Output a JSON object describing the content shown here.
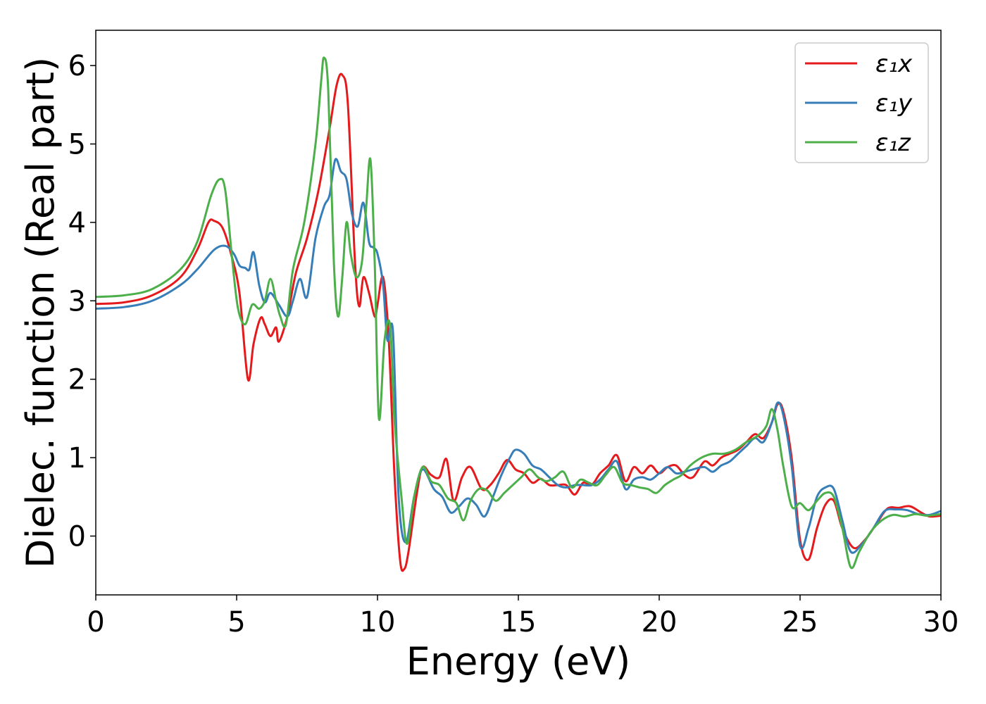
{
  "chart_data": {
    "type": "line",
    "title": "",
    "xlabel": "Energy (eV)",
    "ylabel": "Dielec. function (Real part)",
    "xlim": [
      0,
      30
    ],
    "ylim": [
      -0.75,
      6.45
    ],
    "xticks": [
      0,
      5,
      10,
      15,
      20,
      25,
      30
    ],
    "yticks": [
      0,
      1,
      2,
      3,
      4,
      5,
      6
    ],
    "grid": false,
    "legend": "top-right",
    "series": [
      {
        "name": "ε₁x",
        "color": "#e41a1c",
        "x": [
          0,
          1,
          2,
          3,
          3.6,
          4.0,
          4.2,
          4.5,
          4.8,
          5.1,
          5.4,
          5.6,
          5.85,
          6.0,
          6.2,
          6.4,
          6.5,
          6.8,
          7.1,
          7.5,
          7.9,
          8.3,
          8.55,
          8.75,
          8.95,
          9.2,
          9.35,
          9.5,
          9.7,
          9.9,
          10.0,
          10.2,
          10.4,
          10.6,
          10.8,
          10.95,
          11.1,
          11.4,
          11.6,
          11.9,
          12.2,
          12.45,
          12.7,
          13.0,
          13.3,
          13.7,
          14.0,
          14.3,
          14.6,
          14.9,
          15.2,
          15.5,
          15.8,
          16.1,
          16.4,
          16.7,
          17.0,
          17.3,
          17.6,
          17.9,
          18.2,
          18.5,
          18.8,
          19.1,
          19.4,
          19.7,
          20.0,
          20.3,
          20.6,
          20.9,
          21.2,
          21.6,
          21.9,
          22.2,
          22.5,
          22.8,
          23.1,
          23.4,
          23.7,
          24.0,
          24.2,
          24.4,
          24.7,
          25.0,
          25.3,
          25.6,
          25.9,
          26.2,
          26.5,
          26.9,
          27.3,
          27.7,
          28.1,
          28.5,
          28.9,
          29.3,
          29.6,
          30.0
        ],
        "y": [
          2.96,
          2.98,
          3.07,
          3.3,
          3.65,
          4.0,
          4.02,
          3.93,
          3.6,
          3.1,
          2.0,
          2.45,
          2.78,
          2.7,
          2.55,
          2.66,
          2.48,
          2.8,
          3.35,
          3.8,
          4.4,
          5.2,
          5.75,
          5.88,
          5.5,
          3.5,
          2.93,
          3.3,
          3.1,
          2.8,
          2.95,
          3.3,
          2.5,
          0.8,
          -0.3,
          -0.42,
          -0.2,
          0.55,
          0.88,
          0.78,
          0.75,
          0.98,
          0.45,
          0.75,
          0.88,
          0.6,
          0.65,
          0.8,
          0.97,
          0.85,
          0.8,
          0.68,
          0.73,
          0.65,
          0.65,
          0.65,
          0.53,
          0.68,
          0.65,
          0.8,
          0.9,
          1.03,
          0.7,
          0.88,
          0.8,
          0.9,
          0.8,
          0.88,
          0.9,
          0.78,
          0.75,
          0.95,
          0.9,
          1.0,
          1.05,
          1.1,
          1.2,
          1.3,
          1.25,
          1.45,
          1.68,
          1.6,
          1.0,
          -0.05,
          -0.3,
          0.1,
          0.4,
          0.45,
          0.1,
          -0.15,
          -0.05,
          0.15,
          0.35,
          0.36,
          0.38,
          0.3,
          0.25,
          0.26
        ]
      },
      {
        "name": "ε₁y",
        "color": "#377eb8",
        "x": [
          0,
          1,
          2,
          3,
          3.6,
          4.2,
          4.6,
          4.9,
          5.1,
          5.3,
          5.45,
          5.6,
          5.8,
          6.0,
          6.2,
          6.5,
          6.8,
          7.0,
          7.25,
          7.5,
          7.8,
          8.1,
          8.3,
          8.5,
          8.7,
          8.9,
          9.1,
          9.3,
          9.5,
          9.7,
          9.85,
          10.0,
          10.2,
          10.35,
          10.55,
          10.75,
          11.0,
          11.3,
          11.6,
          12.0,
          12.3,
          12.6,
          12.9,
          13.2,
          13.5,
          13.8,
          14.1,
          14.4,
          14.7,
          14.9,
          15.2,
          15.5,
          15.8,
          16.1,
          16.4,
          16.7,
          17.0,
          17.3,
          17.6,
          17.9,
          18.2,
          18.5,
          18.8,
          19.1,
          19.4,
          19.7,
          20.0,
          20.3,
          20.6,
          20.9,
          21.2,
          21.6,
          21.9,
          22.2,
          22.5,
          22.8,
          23.1,
          23.4,
          23.7,
          24.0,
          24.2,
          24.4,
          24.7,
          25.0,
          25.3,
          25.6,
          25.9,
          26.2,
          26.5,
          26.8,
          27.2,
          27.6,
          28.0,
          28.4,
          28.8,
          29.2,
          29.6,
          30.0
        ],
        "y": [
          2.9,
          2.92,
          3.0,
          3.2,
          3.4,
          3.65,
          3.7,
          3.6,
          3.45,
          3.42,
          3.4,
          3.62,
          3.2,
          2.98,
          3.1,
          2.95,
          2.8,
          3.0,
          3.28,
          3.05,
          3.8,
          4.2,
          4.35,
          4.8,
          4.65,
          4.55,
          4.1,
          3.95,
          4.25,
          3.75,
          3.68,
          3.6,
          3.2,
          2.5,
          2.6,
          0.5,
          -0.08,
          0.5,
          0.85,
          0.6,
          0.5,
          0.3,
          0.38,
          0.48,
          0.4,
          0.25,
          0.5,
          0.78,
          1.0,
          1.1,
          1.05,
          0.9,
          0.85,
          0.75,
          0.65,
          0.62,
          0.65,
          0.65,
          0.65,
          0.72,
          0.85,
          0.95,
          0.6,
          0.72,
          0.75,
          0.72,
          0.8,
          0.88,
          0.8,
          0.82,
          0.85,
          0.88,
          0.82,
          0.9,
          0.95,
          1.05,
          1.15,
          1.25,
          1.2,
          1.45,
          1.7,
          1.55,
          0.9,
          -0.12,
          0.1,
          0.5,
          0.62,
          0.6,
          0.2,
          -0.2,
          -0.1,
          0.1,
          0.32,
          0.34,
          0.33,
          0.28,
          0.27,
          0.32
        ]
      },
      {
        "name": "ε₁z",
        "color": "#4daf4a",
        "x": [
          0,
          1,
          2,
          3,
          3.6,
          4.1,
          4.4,
          4.6,
          4.85,
          5.05,
          5.3,
          5.55,
          5.8,
          6.0,
          6.2,
          6.4,
          6.55,
          6.75,
          7.0,
          7.4,
          7.8,
          8.0,
          8.1,
          8.25,
          8.45,
          8.6,
          8.75,
          8.9,
          9.05,
          9.25,
          9.45,
          9.6,
          9.75,
          9.9,
          10.05,
          10.25,
          10.45,
          10.6,
          10.85,
          11.05,
          11.3,
          11.6,
          11.9,
          12.2,
          12.5,
          12.8,
          13.05,
          13.3,
          13.6,
          13.9,
          14.2,
          14.5,
          14.8,
          15.1,
          15.4,
          15.7,
          16.0,
          16.3,
          16.6,
          16.9,
          17.2,
          17.5,
          17.8,
          18.1,
          18.4,
          18.7,
          19.0,
          19.3,
          19.6,
          19.9,
          20.2,
          20.5,
          20.8,
          21.1,
          21.5,
          21.9,
          22.3,
          22.7,
          23.1,
          23.5,
          23.8,
          24.0,
          24.2,
          24.4,
          24.7,
          25.0,
          25.3,
          25.6,
          25.9,
          26.2,
          26.5,
          26.8,
          27.1,
          27.5,
          27.9,
          28.3,
          28.7,
          29.1,
          29.5,
          30.0
        ],
        "y": [
          3.05,
          3.07,
          3.15,
          3.4,
          3.75,
          4.35,
          4.55,
          4.4,
          3.5,
          2.9,
          2.7,
          2.95,
          2.9,
          3.0,
          3.28,
          3.0,
          2.8,
          2.7,
          3.4,
          4.0,
          5.0,
          5.8,
          6.1,
          5.7,
          3.5,
          2.8,
          3.3,
          4.0,
          3.6,
          3.3,
          3.5,
          4.2,
          4.8,
          3.5,
          1.5,
          2.5,
          2.68,
          1.5,
          0.5,
          -0.1,
          0.5,
          0.88,
          0.7,
          0.65,
          0.48,
          0.42,
          0.2,
          0.45,
          0.6,
          0.58,
          0.45,
          0.55,
          0.65,
          0.75,
          0.85,
          0.75,
          0.7,
          0.75,
          0.82,
          0.62,
          0.72,
          0.68,
          0.65,
          0.78,
          0.88,
          0.68,
          0.65,
          0.62,
          0.6,
          0.55,
          0.65,
          0.72,
          0.78,
          0.9,
          1.0,
          1.05,
          1.05,
          1.1,
          1.2,
          1.28,
          1.4,
          1.62,
          1.35,
          0.9,
          0.38,
          0.42,
          0.33,
          0.45,
          0.55,
          0.5,
          0.1,
          -0.4,
          -0.2,
          0.05,
          0.2,
          0.27,
          0.25,
          0.28,
          0.26,
          0.28
        ]
      }
    ]
  }
}
